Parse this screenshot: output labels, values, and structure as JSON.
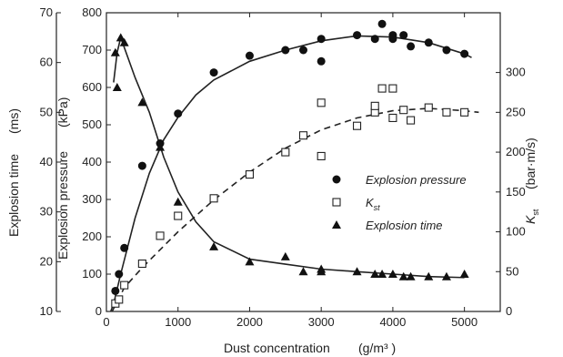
{
  "chart_data": {
    "type": "scatter",
    "x_axis": {
      "label": "Dust concentration",
      "unit": "(g/m³ )",
      "range": [
        0,
        5500
      ],
      "ticks": [
        0,
        1000,
        2000,
        3000,
        4000,
        5000
      ]
    },
    "y_axes": {
      "time": {
        "label": "Explosion time",
        "unit": "(ms)",
        "range": [
          10,
          70
        ],
        "ticks": [
          10,
          20,
          30,
          40,
          50,
          60,
          70
        ],
        "side": "far-left"
      },
      "pressure": {
        "label": "Explosion pressure",
        "unit": "(kPa)",
        "range": [
          0,
          800
        ],
        "ticks": [
          0,
          100,
          200,
          300,
          400,
          500,
          600,
          700,
          800
        ],
        "side": "left"
      },
      "kst": {
        "label_main": "K",
        "label_sub": "st",
        "unit": "(bar·m/s)",
        "range": [
          0,
          375
        ],
        "ticks": [
          0,
          50,
          100,
          150,
          200,
          250,
          300
        ],
        "side": "right"
      }
    },
    "legend": {
      "position": "center-right",
      "entries": [
        {
          "key": "pressure",
          "marker": "circle",
          "label": "Explosion pressure"
        },
        {
          "key": "kst",
          "marker": "square",
          "label_main": "K",
          "label_sub": "st"
        },
        {
          "key": "time",
          "marker": "triangle",
          "label": "Explosion time"
        }
      ]
    },
    "series": [
      {
        "key": "pressure",
        "axis": "pressure",
        "marker": "circle",
        "line": "solid",
        "points": [
          [
            125,
            55
          ],
          [
            175,
            100
          ],
          [
            250,
            170
          ],
          [
            500,
            390
          ],
          [
            750,
            450
          ],
          [
            1000,
            530
          ],
          [
            1500,
            640
          ],
          [
            2000,
            685
          ],
          [
            2500,
            700
          ],
          [
            2750,
            700
          ],
          [
            3000,
            730
          ],
          [
            3000,
            670
          ],
          [
            3500,
            740
          ],
          [
            3750,
            730
          ],
          [
            3850,
            770
          ],
          [
            4000,
            740
          ],
          [
            4000,
            730
          ],
          [
            4150,
            740
          ],
          [
            4250,
            710
          ],
          [
            4500,
            720
          ],
          [
            4750,
            700
          ],
          [
            5000,
            690
          ]
        ],
        "fit": [
          [
            60,
            0
          ],
          [
            100,
            20
          ],
          [
            200,
            100
          ],
          [
            400,
            250
          ],
          [
            600,
            370
          ],
          [
            800,
            460
          ],
          [
            1000,
            520
          ],
          [
            1250,
            580
          ],
          [
            1500,
            620
          ],
          [
            2000,
            670
          ],
          [
            2500,
            700
          ],
          [
            3000,
            725
          ],
          [
            3500,
            738
          ],
          [
            4000,
            735
          ],
          [
            4500,
            720
          ],
          [
            5000,
            690
          ],
          [
            5100,
            680
          ]
        ]
      },
      {
        "key": "kst",
        "axis": "kst",
        "marker": "square",
        "line": "dashed",
        "points": [
          [
            125,
            10
          ],
          [
            175,
            15
          ],
          [
            250,
            33
          ],
          [
            500,
            60
          ],
          [
            750,
            95
          ],
          [
            1000,
            120
          ],
          [
            1500,
            142
          ],
          [
            2000,
            172
          ],
          [
            2500,
            200
          ],
          [
            2750,
            221
          ],
          [
            3000,
            195
          ],
          [
            3000,
            262
          ],
          [
            3500,
            233
          ],
          [
            3750,
            250
          ],
          [
            3750,
            258
          ],
          [
            3850,
            280
          ],
          [
            4000,
            280
          ],
          [
            4000,
            243
          ],
          [
            4150,
            253
          ],
          [
            4250,
            240
          ],
          [
            4500,
            256
          ],
          [
            4750,
            250
          ],
          [
            5000,
            250
          ]
        ],
        "fit": [
          [
            80,
            0
          ],
          [
            250,
            30
          ],
          [
            500,
            55
          ],
          [
            1000,
            100
          ],
          [
            1500,
            140
          ],
          [
            2000,
            175
          ],
          [
            2500,
            205
          ],
          [
            3000,
            228
          ],
          [
            3500,
            243
          ],
          [
            4000,
            252
          ],
          [
            4500,
            255
          ],
          [
            5000,
            252
          ],
          [
            5200,
            250
          ]
        ]
      },
      {
        "key": "time",
        "axis": "time",
        "marker": "triangle",
        "line": "solid",
        "points": [
          [
            125,
            62
          ],
          [
            150,
            55
          ],
          [
            200,
            65
          ],
          [
            250,
            64
          ],
          [
            500,
            52
          ],
          [
            750,
            43
          ],
          [
            1000,
            32
          ],
          [
            1500,
            23
          ],
          [
            2000,
            20
          ],
          [
            2500,
            21
          ],
          [
            2750,
            18
          ],
          [
            3000,
            18.5
          ],
          [
            3000,
            18
          ],
          [
            3500,
            18
          ],
          [
            3750,
            17.5
          ],
          [
            3850,
            17.5
          ],
          [
            4000,
            17.5
          ],
          [
            4150,
            17
          ],
          [
            4250,
            17
          ],
          [
            4500,
            17
          ],
          [
            4750,
            17
          ],
          [
            5000,
            17.5
          ]
        ],
        "fit": [
          [
            100,
            56
          ],
          [
            150,
            62
          ],
          [
            200,
            65
          ],
          [
            250,
            63
          ],
          [
            400,
            57
          ],
          [
            600,
            50
          ],
          [
            800,
            41
          ],
          [
            1000,
            34
          ],
          [
            1250,
            28
          ],
          [
            1500,
            24
          ],
          [
            2000,
            20.5
          ],
          [
            2500,
            19.5
          ],
          [
            3000,
            18.5
          ],
          [
            3500,
            18
          ],
          [
            4000,
            17.5
          ],
          [
            4500,
            17
          ],
          [
            5000,
            16.8
          ]
        ]
      }
    ]
  }
}
